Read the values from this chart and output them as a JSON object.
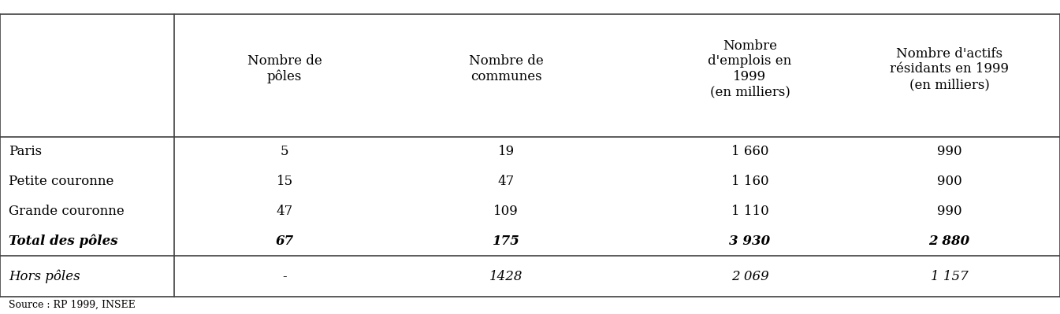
{
  "col_headers": [
    "Nombre de\npôles",
    "Nombre de\ncommunes",
    "Nombre\nd'emplois en\n1999\n(en milliers)",
    "Nombre d'actifs\nrésidants en 1999\n(en milliers)"
  ],
  "rows": [
    {
      "label": "Paris",
      "bold": false,
      "italic": false,
      "values": [
        "5",
        "19",
        "1 660",
        "990"
      ]
    },
    {
      "label": "Petite couronne",
      "bold": false,
      "italic": false,
      "values": [
        "15",
        "47",
        "1 160",
        "900"
      ]
    },
    {
      "label": "Grande couronne",
      "bold": false,
      "italic": false,
      "values": [
        "47",
        "109",
        "1 110",
        "990"
      ]
    },
    {
      "label": "Total des pôles",
      "bold": true,
      "italic": true,
      "values": [
        "67",
        "175",
        "3 930",
        "2 880"
      ]
    }
  ],
  "hors_poles": {
    "label": "Hors pôles",
    "italic": true,
    "values": [
      "-",
      "1428",
      "2 069",
      "1 157"
    ]
  },
  "source_text": "Source : RP 1999, INSEE",
  "background_color": "#ffffff",
  "text_color": "#000000",
  "line_color": "#404040",
  "font_size": 12,
  "header_font_size": 12
}
